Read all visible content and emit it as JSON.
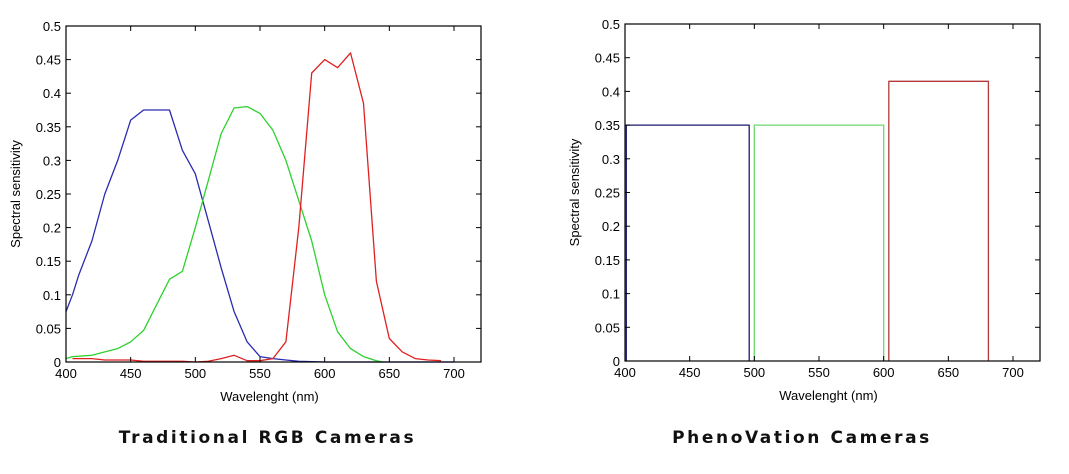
{
  "chart_data": [
    {
      "type": "line",
      "title": "Traditional RGB Cameras",
      "xlabel": "Wavelenght (nm)",
      "ylabel": "Spectral sensitivity",
      "xlim": [
        400,
        720
      ],
      "ylim": [
        0,
        0.5
      ],
      "xticks": [
        400,
        450,
        500,
        550,
        600,
        650,
        700
      ],
      "yticks": [
        0,
        0.05,
        0.1,
        0.15,
        0.2,
        0.25,
        0.3,
        0.35,
        0.4,
        0.45,
        0.5
      ],
      "grid": false,
      "legend": null,
      "series": [
        {
          "name": "Blue",
          "color": "#2b2bb0",
          "x": [
            400,
            405,
            410,
            420,
            430,
            440,
            450,
            460,
            470,
            480,
            490,
            500,
            510,
            520,
            530,
            540,
            550,
            560,
            570,
            580,
            600,
            650,
            700
          ],
          "y": [
            0.075,
            0.1,
            0.13,
            0.18,
            0.25,
            0.3,
            0.36,
            0.375,
            0.375,
            0.375,
            0.315,
            0.28,
            0.21,
            0.14,
            0.075,
            0.03,
            0.008,
            0.005,
            0.003,
            0.001,
            0.0,
            0.0,
            0.0
          ]
        },
        {
          "name": "Green",
          "color": "#2ed12e",
          "x": [
            400,
            405,
            420,
            430,
            440,
            450,
            460,
            470,
            480,
            490,
            500,
            510,
            520,
            530,
            540,
            550,
            560,
            570,
            580,
            590,
            600,
            610,
            620,
            630,
            640,
            645
          ],
          "y": [
            0.005,
            0.008,
            0.01,
            0.015,
            0.02,
            0.03,
            0.047,
            0.085,
            0.123,
            0.135,
            0.2,
            0.27,
            0.34,
            0.378,
            0.38,
            0.37,
            0.345,
            0.3,
            0.24,
            0.18,
            0.1,
            0.045,
            0.02,
            0.008,
            0.002,
            0.0
          ]
        },
        {
          "name": "Red",
          "color": "#e02020",
          "x": [
            405,
            420,
            430,
            450,
            460,
            470,
            480,
            490,
            500,
            510,
            520,
            530,
            540,
            550,
            560,
            570,
            580,
            590,
            600,
            610,
            620,
            630,
            640,
            650,
            660,
            670,
            680,
            690
          ],
          "y": [
            0.005,
            0.005,
            0.003,
            0.003,
            0.001,
            0.001,
            0.001,
            0.001,
            0.0,
            0.001,
            0.005,
            0.01,
            0.002,
            0.002,
            0.005,
            0.03,
            0.2,
            0.43,
            0.45,
            0.438,
            0.46,
            0.385,
            0.12,
            0.035,
            0.015,
            0.005,
            0.003,
            0.002
          ]
        }
      ]
    },
    {
      "type": "line",
      "title": "PhenoVation Cameras",
      "xlabel": "Wavelenght (nm)",
      "ylabel": "Spectral sensitivity",
      "xlim": [
        400,
        720
      ],
      "ylim": [
        0,
        0.5
      ],
      "xticks": [
        400,
        450,
        500,
        550,
        600,
        650,
        700
      ],
      "yticks": [
        0,
        0.05,
        0.1,
        0.15,
        0.2,
        0.25,
        0.3,
        0.35,
        0.4,
        0.45,
        0.5
      ],
      "grid": false,
      "legend": null,
      "series": [
        {
          "name": "Blue",
          "color": "#1a1a70",
          "x": [
            401,
            401,
            496,
            496
          ],
          "y": [
            0,
            0.35,
            0.35,
            0
          ],
          "band": [
            401,
            496
          ],
          "height": 0.35
        },
        {
          "name": "Green",
          "color": "#6fd86f",
          "x": [
            500,
            500,
            600,
            600
          ],
          "y": [
            0,
            0.35,
            0.35,
            0
          ],
          "band": [
            500,
            600
          ],
          "height": 0.35
        },
        {
          "name": "Red",
          "color": "#b43a3a",
          "x": [
            604,
            604,
            681,
            681
          ],
          "y": [
            0,
            0.415,
            0.415,
            0
          ],
          "band": [
            604,
            681
          ],
          "height": 0.415
        }
      ]
    }
  ],
  "captions": {
    "left": "Traditional RGB Cameras",
    "right": "PhenoVation Cameras"
  }
}
